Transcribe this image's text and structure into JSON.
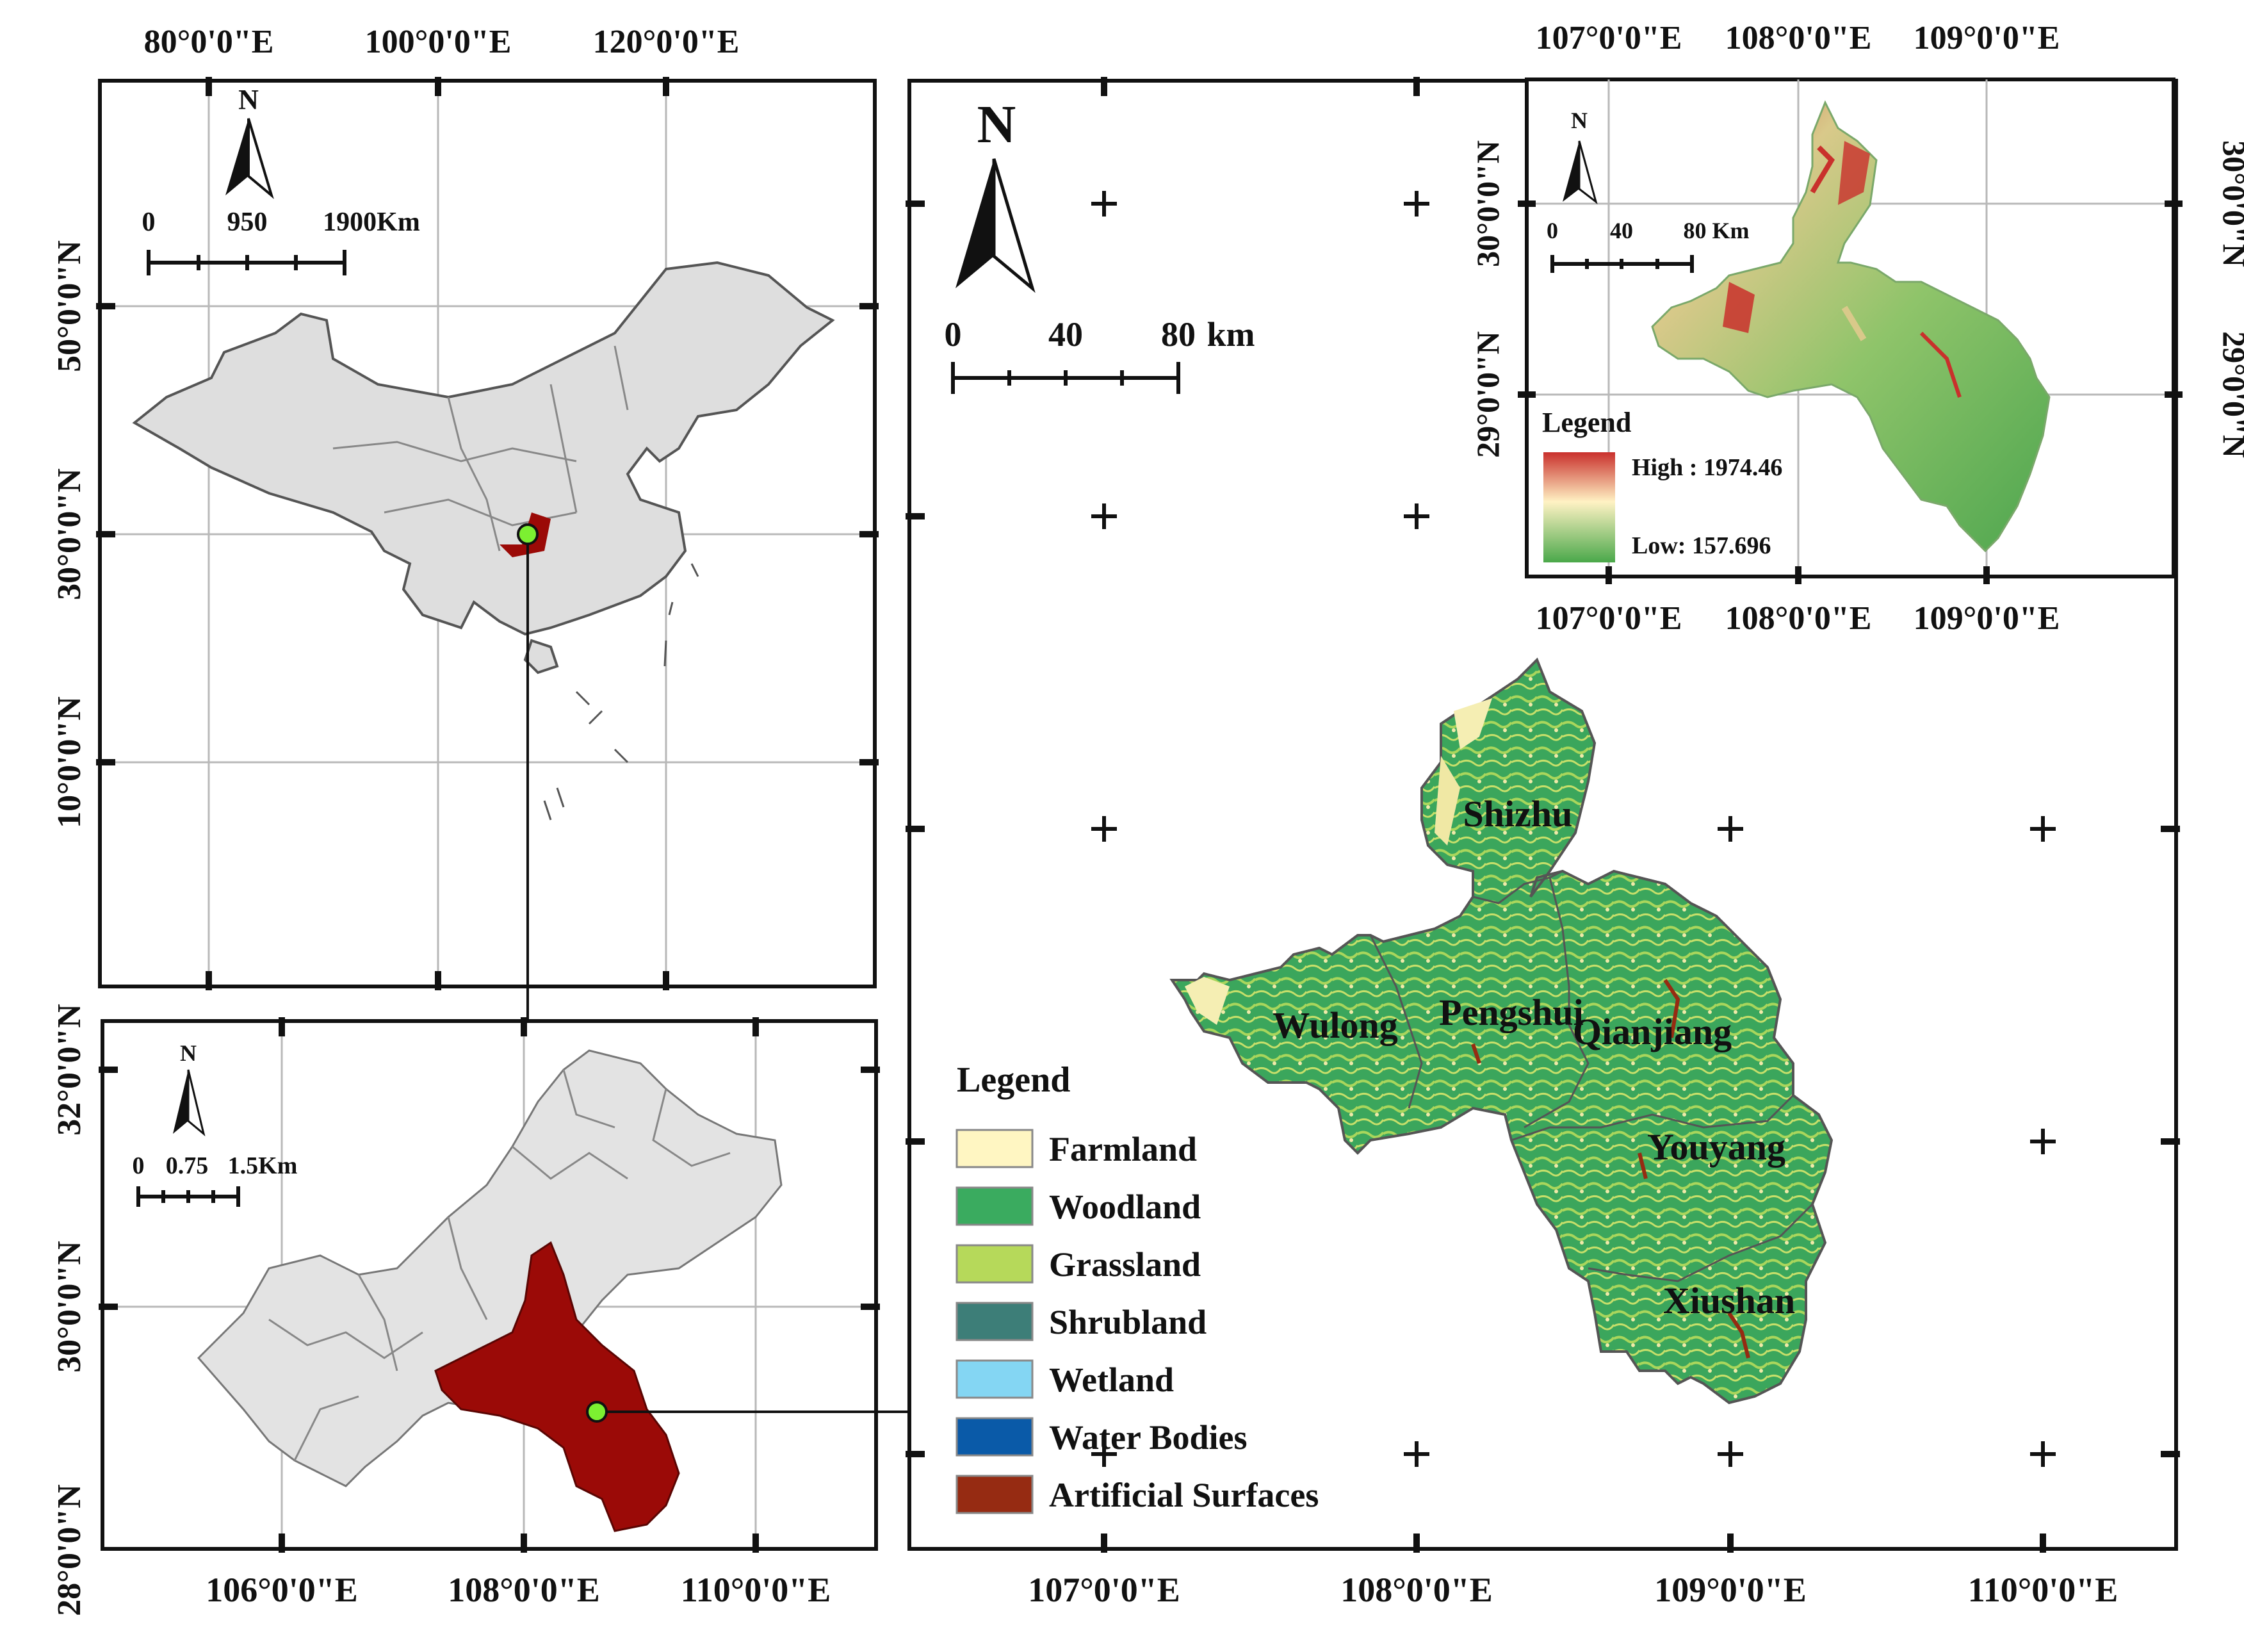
{
  "overview_china": {
    "x_labels": [
      "80°0'0\"E",
      "100°0'0\"E",
      "120°0'0\"E"
    ],
    "y_labels": [
      "50°0'0\"N",
      "30°0'0\"N",
      "10°0'0\"N"
    ],
    "north": "N",
    "scale": [
      "0",
      "950",
      "1900Km"
    ]
  },
  "chongqing_map": {
    "x_labels": [
      "106°0'0\"E",
      "108°0'0\"E",
      "110°0'0\"E"
    ],
    "y_labels": [
      "32°0'0\"N",
      "30°0'0\"N",
      "28°0'0\"N"
    ],
    "north": "N",
    "scale": [
      "0",
      "0.75",
      "1.5Km"
    ],
    "region_color": "#9b0a07",
    "base_color": "#e3e3e3"
  },
  "main_map": {
    "x_labels": [
      "107°0'0\"E",
      "108°0'0\"E",
      "109°0'0\"E",
      "110°0'0\"E"
    ],
    "north": "N",
    "scale": [
      "0",
      "40",
      "80",
      "km"
    ],
    "counties": [
      "Shizhu",
      "Wulong",
      "Pengshui",
      "Qianjiang",
      "Youyang",
      "Xiushan"
    ],
    "legend": {
      "title": "Legend",
      "items": [
        {
          "label": "Farmland",
          "color": "#fff6c2"
        },
        {
          "label": "Woodland",
          "color": "#3aab5f"
        },
        {
          "label": "Grassland",
          "color": "#b6d95a"
        },
        {
          "label": "Shrubland",
          "color": "#3d7e78"
        },
        {
          "label": "Wetland",
          "color": "#84d6f3"
        },
        {
          "label": "Water Bodies",
          "color": "#0a5aa8"
        },
        {
          "label": "Artificial Surfaces",
          "color": "#962b12"
        }
      ]
    }
  },
  "dem_inset": {
    "x_labels": [
      "107°0'0\"E",
      "108°0'0\"E",
      "109°0'0\"E"
    ],
    "y_labels": [
      "30°0'0\"N",
      "29°0'0\"N"
    ],
    "north": "N",
    "scale": [
      "0",
      "40",
      "80 Km"
    ],
    "legend_title": "Legend",
    "high": "High : 1974.46",
    "low": "Low: 157.696"
  },
  "marker_color": "#7cf031"
}
